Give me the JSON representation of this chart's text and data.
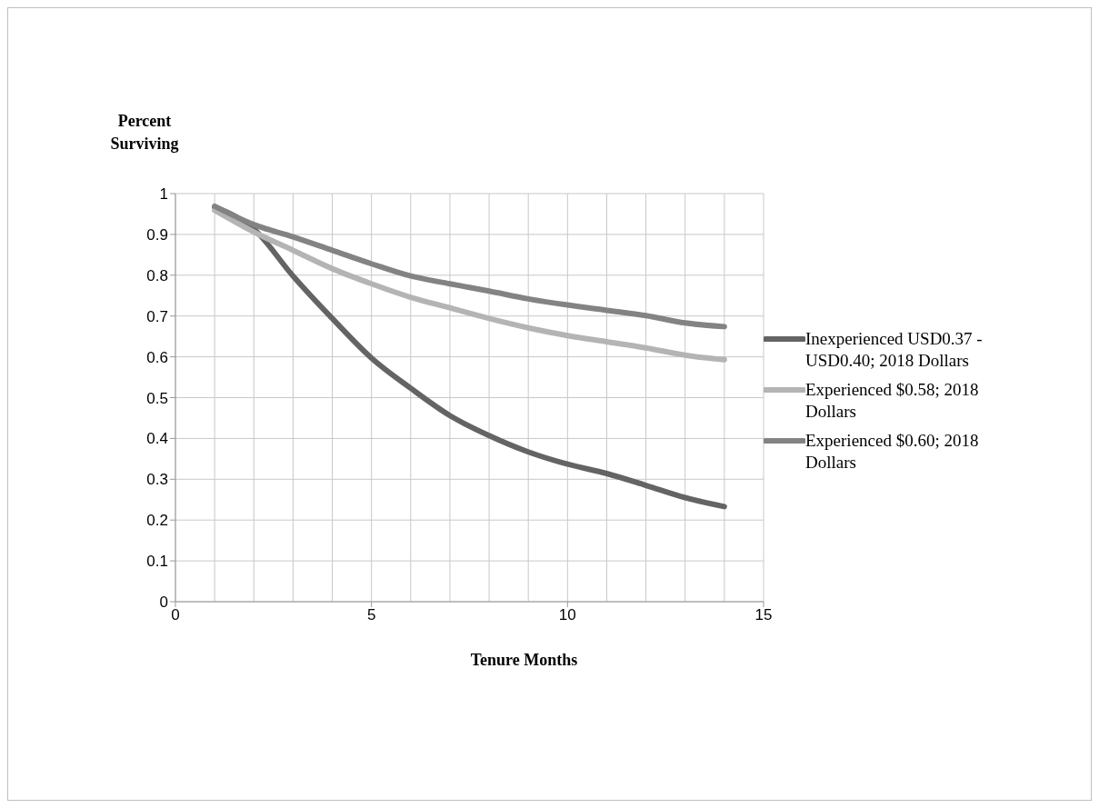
{
  "chart_data": {
    "type": "line",
    "xlabel": "Tenure Months",
    "ylabel": "Percent Surviving",
    "x": [
      1,
      2,
      3,
      4,
      5,
      6,
      7,
      8,
      9,
      10,
      11,
      12,
      13,
      14
    ],
    "series": [
      {
        "name": "Inexperienced USD0.37 - USD0.40; 2018 Dollars",
        "color": "#646464",
        "values": [
          0.967,
          0.913,
          0.798,
          0.694,
          0.597,
          0.523,
          0.456,
          0.407,
          0.367,
          0.337,
          0.314,
          0.285,
          0.255,
          0.233
        ]
      },
      {
        "name": "Experienced $0.58; 2018 Dollars",
        "color": "#b4b4b4",
        "values": [
          0.959,
          0.906,
          0.861,
          0.816,
          0.779,
          0.746,
          0.72,
          0.694,
          0.671,
          0.652,
          0.637,
          0.622,
          0.604,
          0.593
        ]
      },
      {
        "name": "Experienced $0.60; 2018 Dollars",
        "color": "#838383",
        "values": [
          0.969,
          0.924,
          0.894,
          0.861,
          0.828,
          0.798,
          0.779,
          0.761,
          0.742,
          0.727,
          0.714,
          0.701,
          0.683,
          0.674
        ]
      }
    ],
    "xlim": [
      0,
      15
    ],
    "xticks": [
      0,
      5,
      10,
      15
    ],
    "ylim": [
      0,
      1
    ],
    "yticks": [
      0,
      0.1,
      0.2,
      0.3,
      0.4,
      0.5,
      0.6,
      0.7,
      0.8,
      0.9,
      1
    ],
    "grid": true,
    "legend": "right",
    "marker": "none",
    "line_style": "solid"
  }
}
